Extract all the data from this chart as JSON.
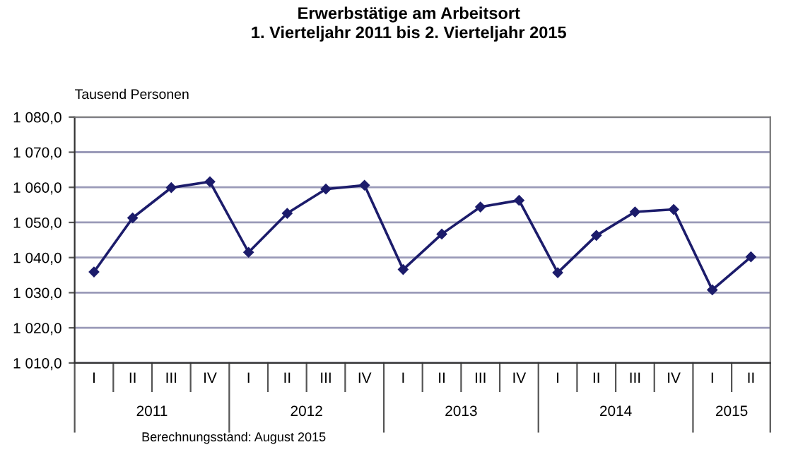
{
  "chart_data": {
    "type": "line",
    "title": "Erwerbstätige am Arbeitsort\n1. Vierteljahr 2011 bis 2. Vierteljahr 2015",
    "ylabel": "Tausend Personen",
    "categories": [
      "I",
      "II",
      "III",
      "IV",
      "I",
      "II",
      "III",
      "IV",
      "I",
      "II",
      "III",
      "IV",
      "I",
      "II",
      "III",
      "IV",
      "I",
      "II"
    ],
    "series": [
      {
        "color": "#1c1c6b",
        "values": [
          1035.9,
          1051.3,
          1059.9,
          1061.6,
          1041.5,
          1052.6,
          1059.5,
          1060.6,
          1036.6,
          1046.7,
          1054.4,
          1056.3,
          1035.7,
          1046.3,
          1053.0,
          1053.7,
          1030.8,
          1040.2
        ]
      }
    ],
    "ylim": [
      1010,
      1080
    ],
    "yticks": [
      {
        "value": 1010,
        "label": "1 010,0"
      },
      {
        "value": 1020,
        "label": "1 020,0"
      },
      {
        "value": 1030,
        "label": "1 030,0"
      },
      {
        "value": 1040,
        "label": "1 040,0"
      },
      {
        "value": 1050,
        "label": "1 050,0"
      },
      {
        "value": 1060,
        "label": "1 060,0"
      },
      {
        "value": 1070,
        "label": "1 070,0"
      },
      {
        "value": 1080,
        "label": "1 080,0"
      }
    ],
    "grid": "y",
    "marker": "diamond",
    "line_style": "solid",
    "legend": false,
    "annotations": [
      "2011",
      "2012",
      "2013",
      "2014",
      "2015",
      "Berechnungsstand: August 2015"
    ]
  }
}
